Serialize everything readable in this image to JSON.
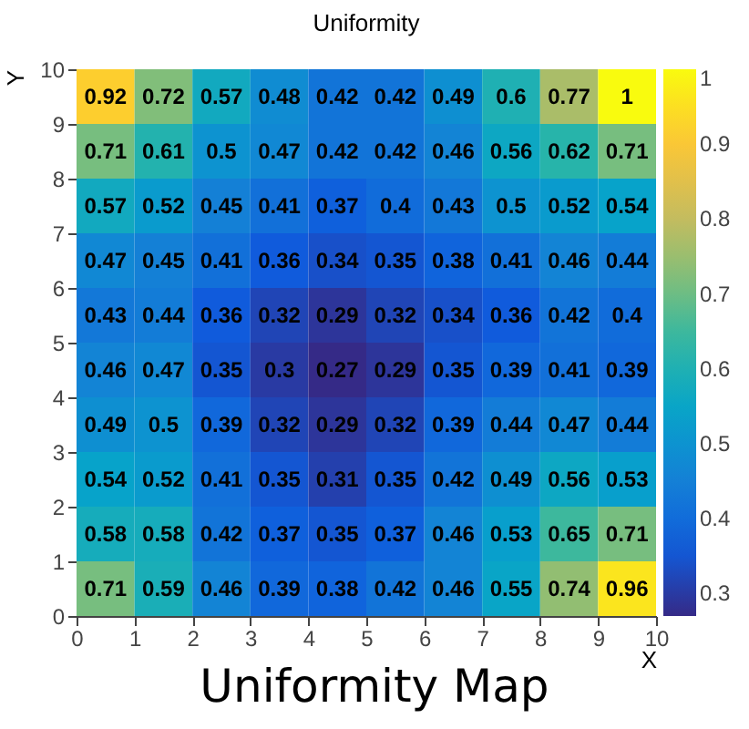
{
  "chart_data": {
    "type": "heatmap",
    "title": "Uniformity",
    "xlabel": "X",
    "ylabel": "Y",
    "annotations": [
      "Uniformity Map"
    ],
    "xlim": [
      0,
      10
    ],
    "xticks": [
      0,
      1,
      2,
      3,
      4,
      5,
      6,
      7,
      8,
      9,
      10
    ],
    "ylim": [
      0,
      10
    ],
    "yticks": [
      0,
      1,
      2,
      3,
      4,
      5,
      6,
      7,
      8,
      9,
      10
    ],
    "cells": [
      [
        0.92,
        0.72,
        0.57,
        0.48,
        0.42,
        0.42,
        0.49,
        0.6,
        0.77,
        1
      ],
      [
        0.71,
        0.61,
        0.5,
        0.47,
        0.42,
        0.42,
        0.46,
        0.56,
        0.62,
        0.71
      ],
      [
        0.57,
        0.52,
        0.45,
        0.41,
        0.37,
        0.4,
        0.43,
        0.5,
        0.52,
        0.54
      ],
      [
        0.47,
        0.45,
        0.41,
        0.36,
        0.34,
        0.35,
        0.38,
        0.41,
        0.46,
        0.44
      ],
      [
        0.43,
        0.44,
        0.36,
        0.32,
        0.29,
        0.32,
        0.34,
        0.36,
        0.42,
        0.4
      ],
      [
        0.46,
        0.47,
        0.35,
        0.3,
        0.27,
        0.29,
        0.35,
        0.39,
        0.41,
        0.39
      ],
      [
        0.49,
        0.5,
        0.39,
        0.32,
        0.29,
        0.32,
        0.39,
        0.44,
        0.47,
        0.44
      ],
      [
        0.54,
        0.52,
        0.41,
        0.35,
        0.31,
        0.35,
        0.42,
        0.49,
        0.56,
        0.53
      ],
      [
        0.58,
        0.58,
        0.42,
        0.37,
        0.35,
        0.37,
        0.46,
        0.53,
        0.65,
        0.71
      ],
      [
        0.71,
        0.59,
        0.46,
        0.39,
        0.38,
        0.42,
        0.46,
        0.55,
        0.74,
        0.96
      ]
    ],
    "clim": [
      0.27,
      1
    ],
    "cticks": [
      0.3,
      0.4,
      0.5,
      0.6,
      0.7,
      0.8,
      0.9,
      1
    ],
    "data_labels": true
  }
}
